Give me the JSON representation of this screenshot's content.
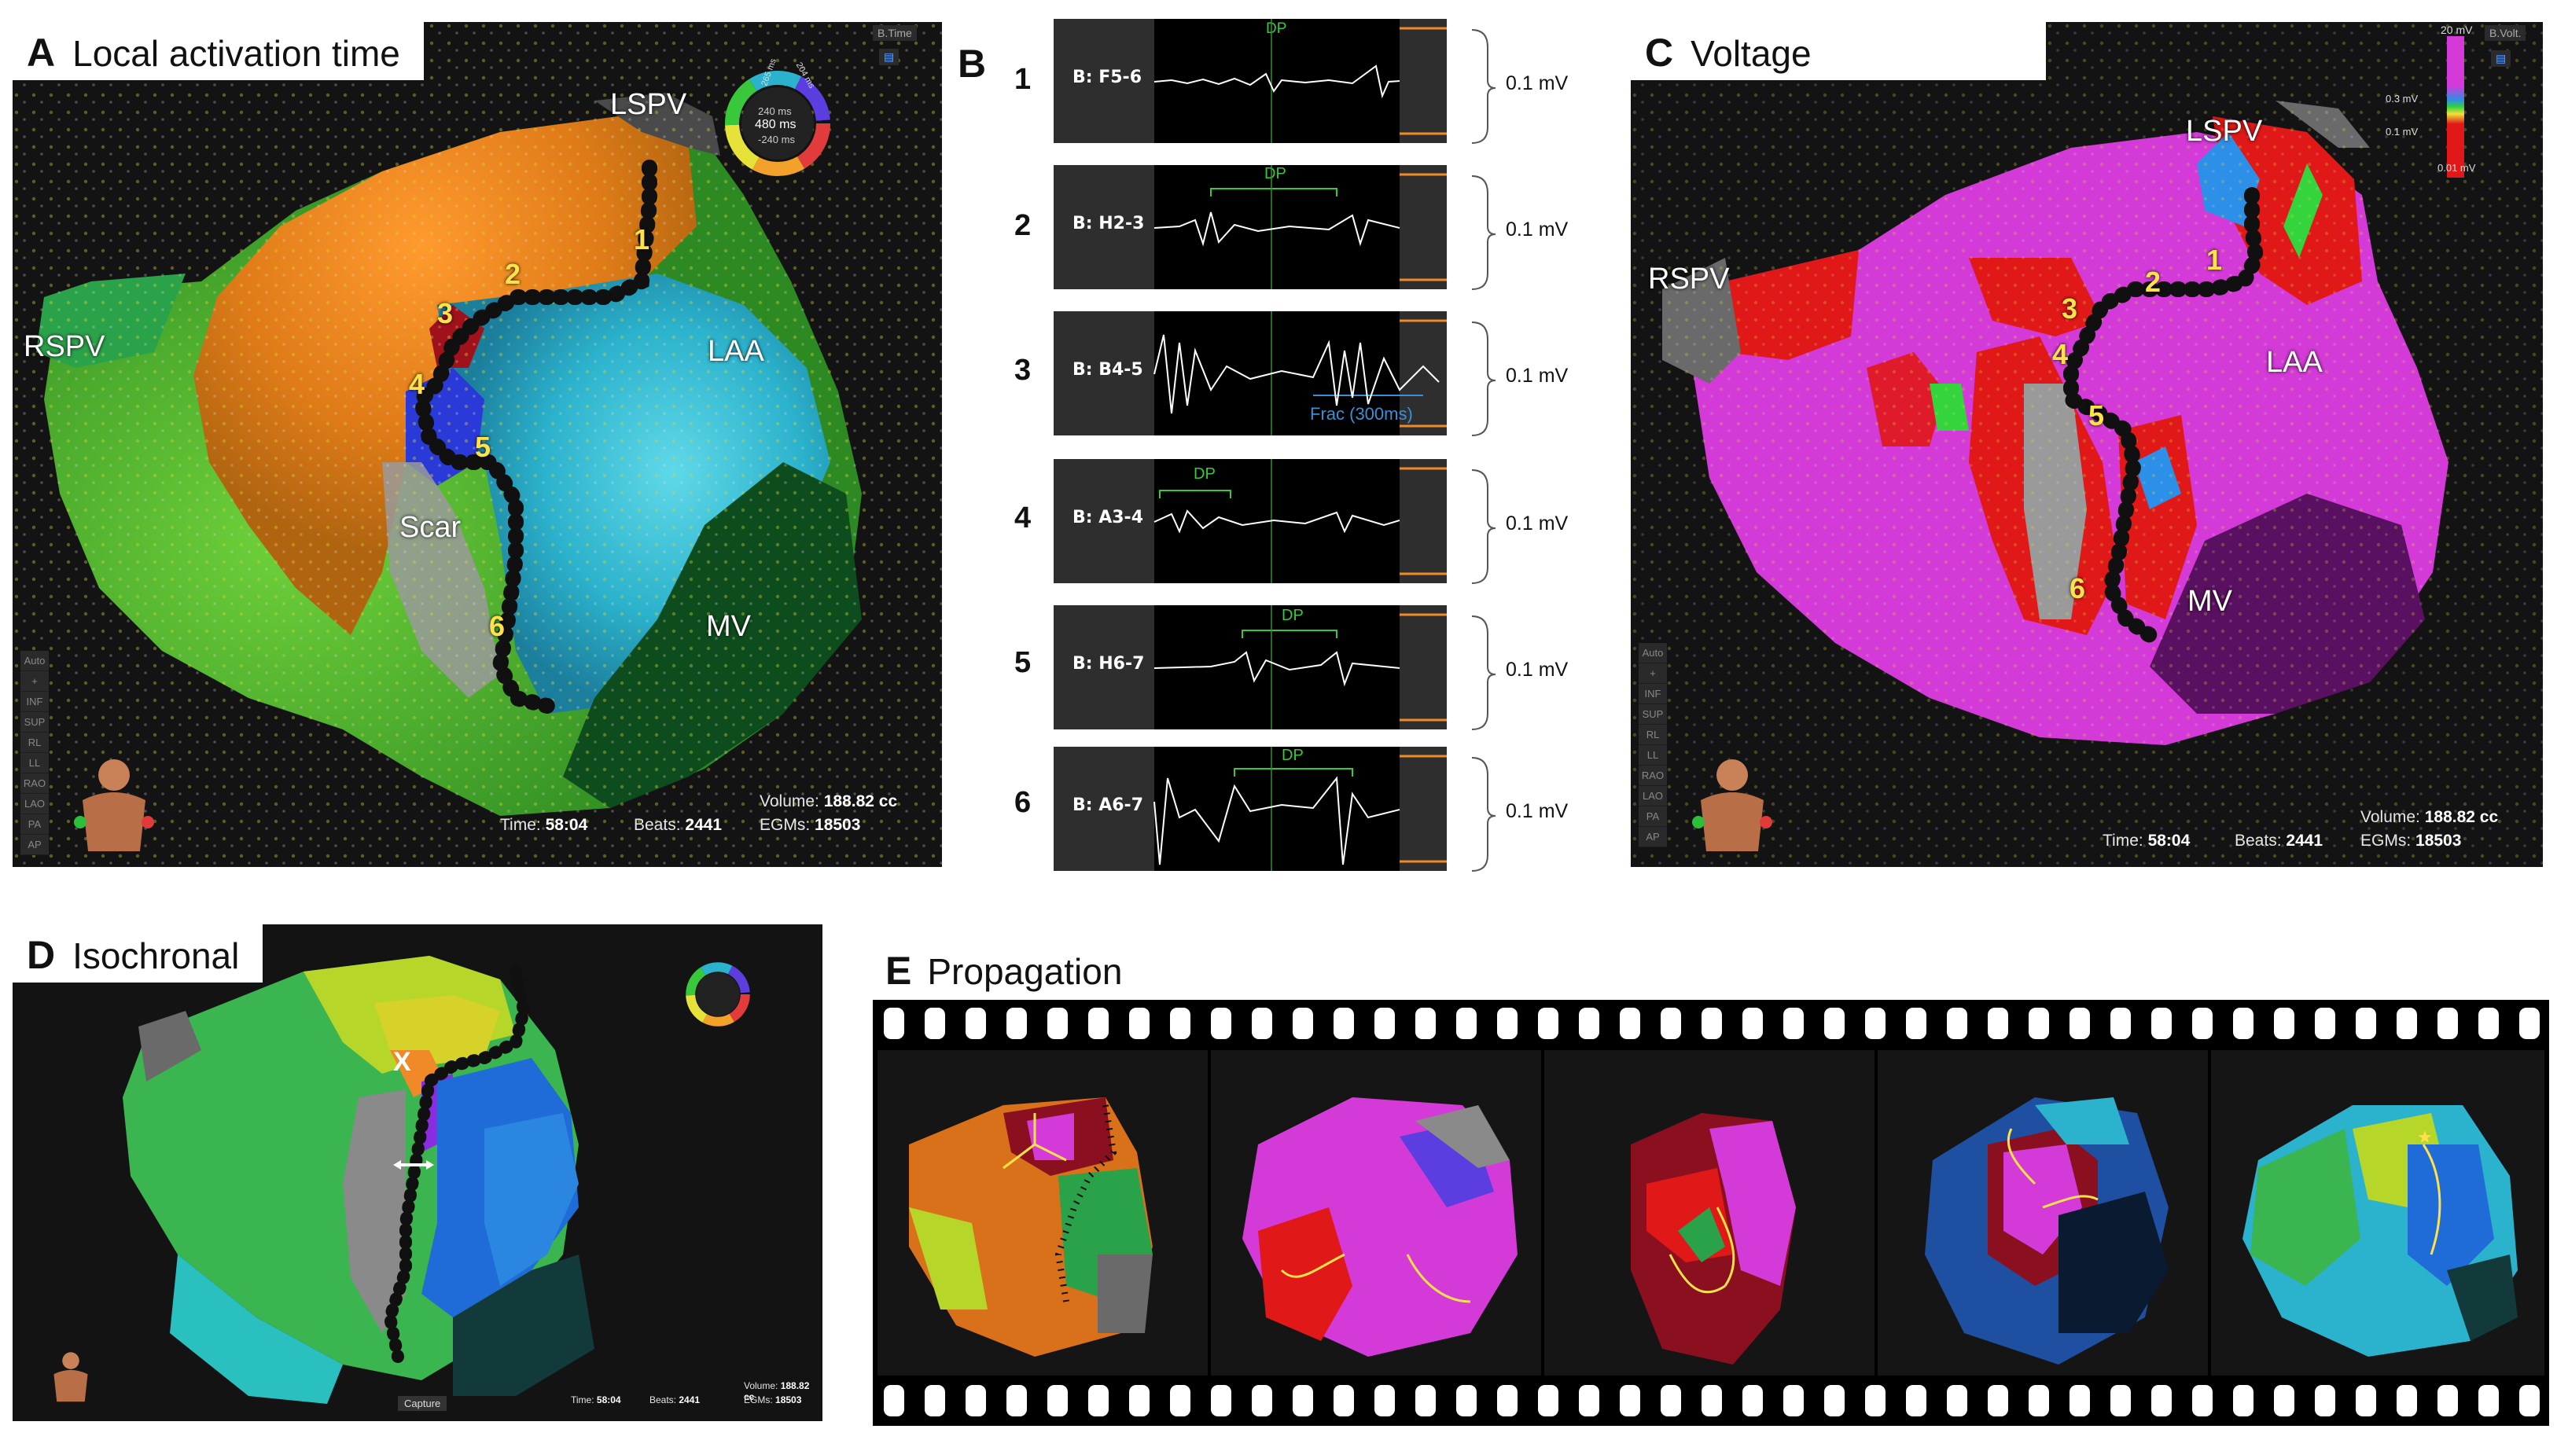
{
  "colors": {
    "accent_yellow": "#ffe14a",
    "ablation_line": "#101010",
    "dp_green": "#39c83a",
    "frac_blue": "#3c8fd6",
    "scale_orange": "#f08a28"
  },
  "panel_a": {
    "letter": "A",
    "title": "Local activation time",
    "labels": {
      "lspv": "LSPV",
      "rspv": "RSPV",
      "laa": "LAA",
      "scar": "Scar",
      "mv": "MV"
    },
    "sites": [
      "1",
      "2",
      "3",
      "4",
      "5",
      "6"
    ],
    "legend": {
      "top_left": "265 ms",
      "top_right": "204 ms",
      "mid": "240 ms",
      "center": "480 ms",
      "bottom": "-240 ms"
    },
    "top_button": "B.Time",
    "stats": {
      "time_label": "Time:",
      "time": "58:04",
      "beats_label": "Beats:",
      "beats": "2441",
      "volume_label": "Volume:",
      "volume": "188.82 cc",
      "egms_label": "EGMs:",
      "egms": "18503"
    },
    "view_buttons": [
      "Auto",
      "+",
      "INF",
      "SUP",
      "RL",
      "LL",
      "RAO",
      "LAO",
      "PA",
      "AP"
    ]
  },
  "panel_b": {
    "letter": "B",
    "scale": "0.1 mV",
    "rows": [
      {
        "num": "1",
        "channel": "B: F5-6",
        "annotation": "DP"
      },
      {
        "num": "2",
        "channel": "B: H2-3",
        "annotation": "DP"
      },
      {
        "num": "3",
        "channel": "B: B4-5",
        "annotation": "Frac (300ms)"
      },
      {
        "num": "4",
        "channel": "B: A3-4",
        "annotation": "DP"
      },
      {
        "num": "5",
        "channel": "B: H6-7",
        "annotation": "DP"
      },
      {
        "num": "6",
        "channel": "B: A6-7",
        "annotation": "DP"
      }
    ]
  },
  "panel_c": {
    "letter": "C",
    "title": "Voltage",
    "labels": {
      "lspv": "LSPV",
      "rspv": "RSPV",
      "laa": "LAA",
      "mv": "MV"
    },
    "sites": [
      "1",
      "2",
      "3",
      "4",
      "5",
      "6"
    ],
    "legend": {
      "top": "20 mV",
      "mid1": "0.3 mV",
      "mid2": "0.1 mV",
      "bottom": "0.01 mV"
    },
    "top_button": "B.Volt.",
    "stats": {
      "time_label": "Time:",
      "time": "58:04",
      "beats_label": "Beats:",
      "beats": "2441",
      "volume_label": "Volume:",
      "volume": "188.82 cc",
      "egms_label": "EGMs:",
      "egms": "18503"
    }
  },
  "panel_d": {
    "letter": "D",
    "title": "Isochronal",
    "marker": "X",
    "capture": "Capture",
    "stats": {
      "time_label": "Time:",
      "time": "58:04",
      "beats_label": "Beats:",
      "beats": "2441",
      "volume_label": "Volume:",
      "volume": "188.82 cc",
      "egms_label": "EGMs:",
      "egms": "18503"
    }
  },
  "panel_e": {
    "letter": "E",
    "title": "Propagation",
    "frame_count": 5
  }
}
